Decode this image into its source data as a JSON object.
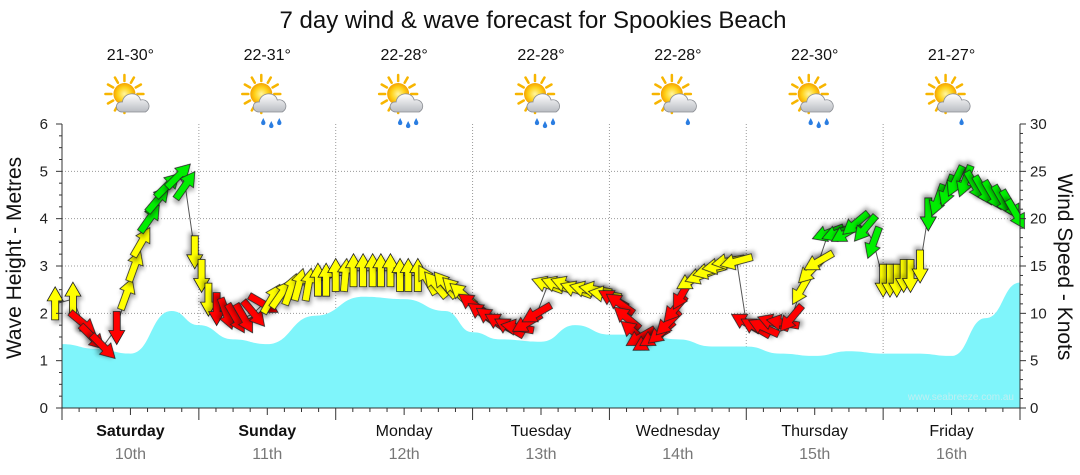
{
  "chart_data": {
    "type": "area",
    "title": "7 day wind & wave forecast for Spookies Beach",
    "ylabel_left": "Wave Height - Metres",
    "ylabel_right": "Wind Speed - Knots",
    "ylim_left": [
      0,
      6
    ],
    "ylim_right": [
      0,
      30
    ],
    "yticks_left": [
      "0",
      "1",
      "2",
      "3",
      "4",
      "5",
      "6"
    ],
    "yticks_right": [
      "0",
      "5",
      "10",
      "15",
      "20",
      "25",
      "30"
    ],
    "watermark": "www.seabreeze.com.au",
    "days": [
      {
        "name": "Saturday",
        "date": "10th",
        "temp": "21-30°",
        "icon": "partly-cloudy-icon",
        "bold": true
      },
      {
        "name": "Sunday",
        "date": "11th",
        "temp": "22-31°",
        "icon": "partly-cloudy-rain-icon",
        "bold": true
      },
      {
        "name": "Monday",
        "date": "12th",
        "temp": "22-28°",
        "icon": "partly-cloudy-rain-icon",
        "bold": false
      },
      {
        "name": "Tuesday",
        "date": "13th",
        "temp": "22-28°",
        "icon": "partly-cloudy-rain-icon",
        "bold": false
      },
      {
        "name": "Wednesday",
        "date": "14th",
        "temp": "22-28°",
        "icon": "partly-cloudy-light-rain-icon",
        "bold": false
      },
      {
        "name": "Thursday",
        "date": "15th",
        "temp": "22-30°",
        "icon": "partly-cloudy-rain-icon",
        "bold": false
      },
      {
        "name": "Friday",
        "date": "16th",
        "temp": "21-27°",
        "icon": "partly-cloudy-light-rain-icon",
        "bold": false
      }
    ],
    "wave_height_series": {
      "name": "Wave Height",
      "color": "#7ff5fb",
      "x_days": [
        0,
        0.25,
        0.5,
        0.8,
        1.0,
        1.25,
        1.5,
        1.85,
        2.2,
        2.5,
        2.8,
        3.0,
        3.2,
        3.5,
        3.75,
        4.0,
        4.25,
        4.5,
        4.75,
        5.0,
        5.25,
        5.5,
        5.75,
        6.0,
        6.25,
        6.5,
        6.75,
        7.0
      ],
      "values": [
        1.35,
        1.25,
        1.15,
        2.05,
        1.75,
        1.45,
        1.35,
        1.95,
        2.35,
        2.3,
        2.05,
        1.6,
        1.45,
        1.4,
        1.75,
        1.55,
        1.55,
        1.45,
        1.3,
        1.3,
        1.15,
        1.1,
        1.2,
        1.15,
        1.15,
        1.1,
        1.9,
        2.65
      ]
    },
    "wind_series": {
      "name": "Wind",
      "unit": "knots",
      "colors": {
        "light": "#ff0000",
        "moderate": "#ffff00",
        "fresh": "#00ee00"
      },
      "points": [
        {
          "x": -0.05,
          "knots": 11,
          "dir": 180,
          "level": "moderate"
        },
        {
          "x": 0.08,
          "knots": 11.5,
          "dir": 180,
          "level": "moderate"
        },
        {
          "x": 0.15,
          "knots": 9,
          "dir": 310,
          "level": "light"
        },
        {
          "x": 0.22,
          "knots": 7.5,
          "dir": 315,
          "level": "light"
        },
        {
          "x": 0.3,
          "knots": 6.5,
          "dir": 315,
          "level": "light"
        },
        {
          "x": 0.4,
          "knots": 8.5,
          "dir": 0,
          "level": "light"
        },
        {
          "x": 0.47,
          "knots": 12,
          "dir": 200,
          "level": "moderate"
        },
        {
          "x": 0.53,
          "knots": 15,
          "dir": 200,
          "level": "moderate"
        },
        {
          "x": 0.58,
          "knots": 17.5,
          "dir": 210,
          "level": "moderate"
        },
        {
          "x": 0.64,
          "knots": 20,
          "dir": 215,
          "level": "fresh"
        },
        {
          "x": 0.7,
          "knots": 22,
          "dir": 220,
          "level": "fresh"
        },
        {
          "x": 0.77,
          "knots": 23.5,
          "dir": 225,
          "level": "fresh"
        },
        {
          "x": 0.85,
          "knots": 24.5,
          "dir": 225,
          "level": "fresh"
        },
        {
          "x": 0.9,
          "knots": 23.5,
          "dir": 215,
          "level": "fresh"
        },
        {
          "x": 0.97,
          "knots": 16.5,
          "dir": 0,
          "level": "moderate"
        },
        {
          "x": 1.02,
          "knots": 14,
          "dir": 0,
          "level": "moderate"
        },
        {
          "x": 1.07,
          "knots": 11.5,
          "dir": 0,
          "level": "moderate"
        },
        {
          "x": 1.13,
          "knots": 10.5,
          "dir": 0,
          "level": "light"
        },
        {
          "x": 1.2,
          "knots": 10,
          "dir": 340,
          "level": "light"
        },
        {
          "x": 1.27,
          "knots": 9.5,
          "dir": 330,
          "level": "light"
        },
        {
          "x": 1.33,
          "knots": 9.5,
          "dir": 330,
          "level": "light"
        },
        {
          "x": 1.4,
          "knots": 10,
          "dir": 320,
          "level": "light"
        },
        {
          "x": 1.47,
          "knots": 11,
          "dir": 300,
          "level": "light"
        },
        {
          "x": 1.53,
          "knots": 11.5,
          "dir": 210,
          "level": "moderate"
        },
        {
          "x": 1.6,
          "knots": 12,
          "dir": 215,
          "level": "moderate"
        },
        {
          "x": 1.67,
          "knots": 12.5,
          "dir": 200,
          "level": "moderate"
        },
        {
          "x": 1.73,
          "knots": 13,
          "dir": 195,
          "level": "moderate"
        },
        {
          "x": 1.8,
          "knots": 13,
          "dir": 190,
          "level": "moderate"
        },
        {
          "x": 1.87,
          "knots": 13.5,
          "dir": 180,
          "level": "moderate"
        },
        {
          "x": 1.93,
          "knots": 13.5,
          "dir": 180,
          "level": "moderate"
        },
        {
          "x": 2.0,
          "knots": 14,
          "dir": 180,
          "level": "moderate"
        },
        {
          "x": 2.07,
          "knots": 14,
          "dir": 185,
          "level": "moderate"
        },
        {
          "x": 2.13,
          "knots": 14.5,
          "dir": 180,
          "level": "moderate"
        },
        {
          "x": 2.2,
          "knots": 14.5,
          "dir": 180,
          "level": "moderate"
        },
        {
          "x": 2.27,
          "knots": 14.5,
          "dir": 180,
          "level": "moderate"
        },
        {
          "x": 2.33,
          "knots": 14.5,
          "dir": 180,
          "level": "moderate"
        },
        {
          "x": 2.4,
          "knots": 14.5,
          "dir": 180,
          "level": "moderate"
        },
        {
          "x": 2.47,
          "knots": 14,
          "dir": 180,
          "level": "moderate"
        },
        {
          "x": 2.53,
          "knots": 14,
          "dir": 180,
          "level": "moderate"
        },
        {
          "x": 2.6,
          "knots": 14,
          "dir": 180,
          "level": "moderate"
        },
        {
          "x": 2.67,
          "knots": 13.5,
          "dir": 150,
          "level": "moderate"
        },
        {
          "x": 2.73,
          "knots": 13,
          "dir": 140,
          "level": "moderate"
        },
        {
          "x": 2.8,
          "knots": 13,
          "dir": 140,
          "level": "moderate"
        },
        {
          "x": 2.87,
          "knots": 12.5,
          "dir": 135,
          "level": "moderate"
        },
        {
          "x": 2.93,
          "knots": 12,
          "dir": 130,
          "level": "moderate"
        },
        {
          "x": 3.0,
          "knots": 11,
          "dir": 125,
          "level": "light"
        },
        {
          "x": 3.07,
          "knots": 10,
          "dir": 125,
          "level": "light"
        },
        {
          "x": 3.13,
          "knots": 9.5,
          "dir": 125,
          "level": "light"
        },
        {
          "x": 3.2,
          "knots": 9,
          "dir": 120,
          "level": "light"
        },
        {
          "x": 3.27,
          "knots": 8.5,
          "dir": 120,
          "level": "light"
        },
        {
          "x": 3.33,
          "knots": 8.5,
          "dir": 100,
          "level": "light"
        },
        {
          "x": 3.4,
          "knots": 9,
          "dir": 60,
          "level": "light"
        },
        {
          "x": 3.47,
          "knots": 10,
          "dir": 60,
          "level": "light"
        },
        {
          "x": 3.55,
          "knots": 13,
          "dir": 110,
          "level": "moderate"
        },
        {
          "x": 3.62,
          "knots": 13,
          "dir": 110,
          "level": "moderate"
        },
        {
          "x": 3.69,
          "knots": 13,
          "dir": 110,
          "level": "moderate"
        },
        {
          "x": 3.76,
          "knots": 12.5,
          "dir": 110,
          "level": "moderate"
        },
        {
          "x": 3.83,
          "knots": 12.5,
          "dir": 105,
          "level": "moderate"
        },
        {
          "x": 3.9,
          "knots": 12.5,
          "dir": 100,
          "level": "moderate"
        },
        {
          "x": 3.97,
          "knots": 12,
          "dir": 100,
          "level": "moderate"
        },
        {
          "x": 4.03,
          "knots": 11.5,
          "dir": 120,
          "level": "light"
        },
        {
          "x": 4.08,
          "knots": 11,
          "dir": 125,
          "level": "light"
        },
        {
          "x": 4.13,
          "knots": 9.5,
          "dir": 130,
          "level": "light"
        },
        {
          "x": 4.18,
          "knots": 8,
          "dir": 130,
          "level": "light"
        },
        {
          "x": 4.23,
          "knots": 7.5,
          "dir": 60,
          "level": "light"
        },
        {
          "x": 4.28,
          "knots": 7,
          "dir": 60,
          "level": "light"
        },
        {
          "x": 4.33,
          "knots": 7.5,
          "dir": 60,
          "level": "light"
        },
        {
          "x": 4.38,
          "knots": 8,
          "dir": 50,
          "level": "light"
        },
        {
          "x": 4.43,
          "knots": 9,
          "dir": 45,
          "level": "light"
        },
        {
          "x": 4.48,
          "knots": 10.5,
          "dir": 40,
          "level": "light"
        },
        {
          "x": 4.53,
          "knots": 12,
          "dir": 30,
          "level": "light"
        },
        {
          "x": 4.6,
          "knots": 13.5,
          "dir": 60,
          "level": "moderate"
        },
        {
          "x": 4.67,
          "knots": 14,
          "dir": 70,
          "level": "moderate"
        },
        {
          "x": 4.73,
          "knots": 14.5,
          "dir": 75,
          "level": "moderate"
        },
        {
          "x": 4.8,
          "knots": 15,
          "dir": 80,
          "level": "moderate"
        },
        {
          "x": 4.87,
          "knots": 15.5,
          "dir": 80,
          "level": "moderate"
        },
        {
          "x": 4.93,
          "knots": 15.5,
          "dir": 75,
          "level": "moderate"
        },
        {
          "x": 5.0,
          "knots": 9,
          "dir": 120,
          "level": "light"
        },
        {
          "x": 5.07,
          "knots": 8.5,
          "dir": 120,
          "level": "light"
        },
        {
          "x": 5.13,
          "knots": 8.5,
          "dir": 115,
          "level": "light"
        },
        {
          "x": 5.2,
          "knots": 9,
          "dir": 110,
          "level": "light"
        },
        {
          "x": 5.27,
          "knots": 9,
          "dir": 100,
          "level": "light"
        },
        {
          "x": 5.33,
          "knots": 9.5,
          "dir": 40,
          "level": "light"
        },
        {
          "x": 5.4,
          "knots": 12.5,
          "dir": 30,
          "level": "moderate"
        },
        {
          "x": 5.47,
          "knots": 14.5,
          "dir": 45,
          "level": "moderate"
        },
        {
          "x": 5.53,
          "knots": 15.5,
          "dir": 60,
          "level": "moderate"
        },
        {
          "x": 5.6,
          "knots": 18.5,
          "dir": 70,
          "level": "fresh"
        },
        {
          "x": 5.67,
          "knots": 18.5,
          "dir": 70,
          "level": "fresh"
        },
        {
          "x": 5.73,
          "knots": 18.5,
          "dir": 60,
          "level": "fresh"
        },
        {
          "x": 5.8,
          "knots": 19.5,
          "dir": 50,
          "level": "fresh"
        },
        {
          "x": 5.87,
          "knots": 19,
          "dir": 40,
          "level": "fresh"
        },
        {
          "x": 5.93,
          "knots": 17.5,
          "dir": 20,
          "level": "fresh"
        },
        {
          "x": 6.0,
          "knots": 13.5,
          "dir": 0,
          "level": "moderate"
        },
        {
          "x": 6.05,
          "knots": 13.5,
          "dir": 0,
          "level": "moderate"
        },
        {
          "x": 6.1,
          "knots": 13.5,
          "dir": 0,
          "level": "moderate"
        },
        {
          "x": 6.15,
          "knots": 14,
          "dir": 0,
          "level": "moderate"
        },
        {
          "x": 6.2,
          "knots": 14,
          "dir": 0,
          "level": "moderate"
        },
        {
          "x": 6.27,
          "knots": 15,
          "dir": 0,
          "level": "moderate"
        },
        {
          "x": 6.33,
          "knots": 20.5,
          "dir": 0,
          "level": "fresh"
        },
        {
          "x": 6.4,
          "knots": 22,
          "dir": 20,
          "level": "fresh"
        },
        {
          "x": 6.47,
          "knots": 23,
          "dir": 20,
          "level": "fresh"
        },
        {
          "x": 6.53,
          "knots": 24,
          "dir": 25,
          "level": "fresh"
        },
        {
          "x": 6.6,
          "knots": 24,
          "dir": 20,
          "level": "fresh"
        },
        {
          "x": 6.67,
          "knots": 23.5,
          "dir": 330,
          "level": "fresh"
        },
        {
          "x": 6.73,
          "knots": 23,
          "dir": 330,
          "level": "fresh"
        },
        {
          "x": 6.8,
          "knots": 22.5,
          "dir": 330,
          "level": "fresh"
        },
        {
          "x": 6.87,
          "knots": 22,
          "dir": 330,
          "level": "fresh"
        },
        {
          "x": 6.93,
          "knots": 21.5,
          "dir": 330,
          "level": "fresh"
        },
        {
          "x": 6.97,
          "knots": 20.5,
          "dir": 330,
          "level": "fresh"
        }
      ]
    }
  }
}
